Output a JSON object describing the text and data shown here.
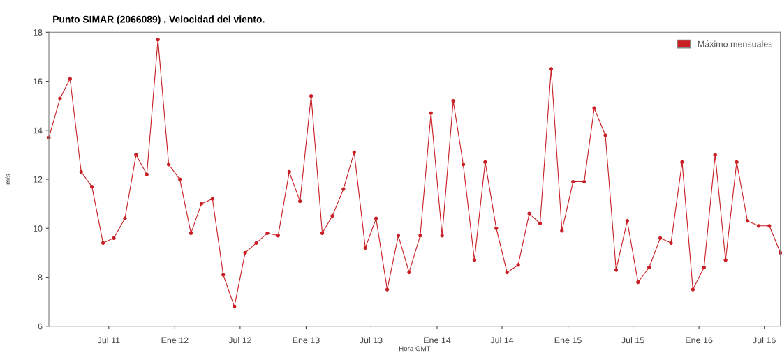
{
  "chart_data": {
    "type": "line",
    "title": "Punto SIMAR (2066089) , Velocidad del viento.",
    "xlabel": "Hora GMT",
    "ylabel": "m/s",
    "x": [
      "2011-01-15",
      "2011-02-15",
      "2011-03-15",
      "2011-04-15",
      "2011-05-15",
      "2011-06-15",
      "2011-07-15",
      "2011-08-15",
      "2011-09-15",
      "2011-10-15",
      "2011-11-15",
      "2011-12-15",
      "2012-01-15",
      "2012-02-15",
      "2012-03-15",
      "2012-04-15",
      "2012-05-15",
      "2012-06-15",
      "2012-07-15",
      "2012-08-15",
      "2012-09-15",
      "2012-10-15",
      "2012-11-15",
      "2012-12-15",
      "2013-01-15",
      "2013-02-15",
      "2013-03-15",
      "2013-04-15",
      "2013-05-15",
      "2013-06-15",
      "2013-07-15",
      "2013-08-15",
      "2013-09-15",
      "2013-10-15",
      "2013-11-15",
      "2013-12-15",
      "2014-01-15",
      "2014-02-15",
      "2014-03-15",
      "2014-04-15",
      "2014-05-15",
      "2014-06-15",
      "2014-07-15",
      "2014-08-15",
      "2014-09-15",
      "2014-10-15",
      "2014-11-15",
      "2014-12-15",
      "2015-01-15",
      "2015-02-15",
      "2015-03-15",
      "2015-04-15",
      "2015-05-15",
      "2015-06-15",
      "2015-07-15",
      "2015-08-15",
      "2015-09-15",
      "2015-10-15",
      "2015-11-15",
      "2015-12-15",
      "2016-01-15",
      "2016-02-15",
      "2016-03-15",
      "2016-04-15",
      "2016-05-15",
      "2016-06-15",
      "2016-07-15",
      "2016-08-15"
    ],
    "series": [
      {
        "name": "Máximo mensuales",
        "color": "#c81e24",
        "values": [
          13.7,
          15.3,
          16.1,
          12.3,
          11.7,
          9.4,
          9.6,
          10.4,
          13.0,
          12.2,
          17.7,
          12.6,
          12.0,
          9.8,
          11.0,
          11.2,
          8.1,
          6.8,
          9.0,
          9.4,
          9.8,
          9.7,
          12.3,
          11.1,
          15.4,
          9.8,
          10.5,
          11.6,
          13.1,
          9.2,
          10.4,
          7.5,
          9.7,
          8.2,
          9.7,
          14.7,
          9.7,
          15.2,
          12.6,
          8.7,
          12.7,
          10.0,
          8.2,
          8.5,
          10.6,
          10.2,
          16.5,
          9.9,
          11.9,
          11.9,
          14.9,
          13.8,
          8.3,
          10.3,
          7.8,
          8.4,
          9.6,
          9.4,
          12.7,
          7.5,
          8.4,
          13.0,
          8.7,
          12.7,
          10.3,
          10.1,
          10.1,
          9.0
        ]
      }
    ],
    "xlim": [
      "2011-01-15",
      "2016-08-15"
    ],
    "xticks": [
      {
        "value": "2011-07-01",
        "label": "Jul 11"
      },
      {
        "value": "2012-01-01",
        "label": "Ene 12"
      },
      {
        "value": "2012-07-01",
        "label": "Jul 12"
      },
      {
        "value": "2013-01-01",
        "label": "Ene 13"
      },
      {
        "value": "2013-07-01",
        "label": "Jul 13"
      },
      {
        "value": "2014-01-01",
        "label": "Ene 14"
      },
      {
        "value": "2014-07-01",
        "label": "Jul 14"
      },
      {
        "value": "2015-01-01",
        "label": "Ene 15"
      },
      {
        "value": "2015-07-01",
        "label": "Jul 15"
      },
      {
        "value": "2016-01-01",
        "label": "Ene 16"
      },
      {
        "value": "2016-07-01",
        "label": "Jul 16"
      }
    ],
    "ylim": [
      6,
      18
    ],
    "yticks": [
      6,
      8,
      10,
      12,
      14,
      16,
      18
    ],
    "grid": false,
    "legend": "top right",
    "marker": "circle",
    "line_style": "solid"
  }
}
